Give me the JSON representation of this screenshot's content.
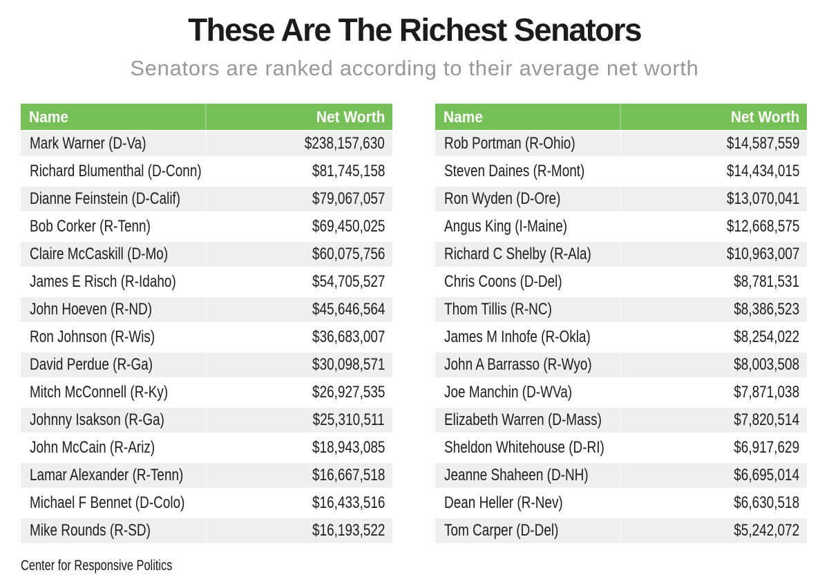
{
  "title": "These Are The Richest Senators",
  "subtitle": "Senators are ranked according to their average net worth",
  "columns": {
    "name": "Name",
    "worth": "Net Worth"
  },
  "source": "Center for Responsive Politics",
  "colors": {
    "header_green": "#75C157",
    "row_gray": "#EFEFEF",
    "subtitle_gray": "#989898",
    "title_black": "#1C1C1C"
  },
  "chart_data": {
    "type": "table",
    "title": "These Are The Richest Senators",
    "subtitle": "Senators are ranked according to their average net worth",
    "columns": [
      "Name",
      "Net Worth"
    ],
    "source": "Center for Responsive Politics",
    "left_table": [
      {
        "name": "Mark Warner (D-Va)",
        "net_worth": "$238,157,630"
      },
      {
        "name": "Richard Blumenthal (D-Conn)",
        "net_worth": "$81,745,158"
      },
      {
        "name": "Dianne Feinstein (D-Calif)",
        "net_worth": "$79,067,057"
      },
      {
        "name": "Bob Corker (R-Tenn)",
        "net_worth": "$69,450,025"
      },
      {
        "name": "Claire McCaskill (D-Mo)",
        "net_worth": "$60,075,756"
      },
      {
        "name": "James E Risch (R-Idaho)",
        "net_worth": "$54,705,527"
      },
      {
        "name": "John Hoeven (R-ND)",
        "net_worth": "$45,646,564"
      },
      {
        "name": "Ron Johnson (R-Wis)",
        "net_worth": "$36,683,007"
      },
      {
        "name": "David Perdue (R-Ga)",
        "net_worth": "$30,098,571"
      },
      {
        "name": "Mitch McConnell (R-Ky)",
        "net_worth": "$26,927,535"
      },
      {
        "name": "Johnny Isakson (R-Ga)",
        "net_worth": "$25,310,511"
      },
      {
        "name": "John McCain (R-Ariz)",
        "net_worth": "$18,943,085"
      },
      {
        "name": "Lamar Alexander (R-Tenn)",
        "net_worth": "$16,667,518"
      },
      {
        "name": "Michael F Bennet (D-Colo)",
        "net_worth": "$16,433,516"
      },
      {
        "name": "Mike Rounds (R-SD)",
        "net_worth": "$16,193,522"
      }
    ],
    "right_table": [
      {
        "name": "Rob Portman (R-Ohio)",
        "net_worth": "$14,587,559"
      },
      {
        "name": "Steven Daines (R-Mont)",
        "net_worth": "$14,434,015"
      },
      {
        "name": "Ron Wyden (D-Ore)",
        "net_worth": "$13,070,041"
      },
      {
        "name": "Angus King (I-Maine)",
        "net_worth": "$12,668,575"
      },
      {
        "name": "Richard C Shelby (R-Ala)",
        "net_worth": "$10,963,007"
      },
      {
        "name": "Chris Coons (D-Del)",
        "net_worth": "$8,781,531"
      },
      {
        "name": "Thom Tillis (R-NC)",
        "net_worth": "$8,386,523"
      },
      {
        "name": "James M Inhofe (R-Okla)",
        "net_worth": "$8,254,022"
      },
      {
        "name": "John A Barrasso (R-Wyo)",
        "net_worth": "$8,003,508"
      },
      {
        "name": "Joe Manchin (D-WVa)",
        "net_worth": "$7,871,038"
      },
      {
        "name": "Elizabeth Warren (D-Mass)",
        "net_worth": "$7,820,514"
      },
      {
        "name": "Sheldon Whitehouse (D-RI)",
        "net_worth": "$6,917,629"
      },
      {
        "name": "Jeanne Shaheen (D-NH)",
        "net_worth": "$6,695,014"
      },
      {
        "name": "Dean Heller (R-Nev)",
        "net_worth": "$6,630,518"
      },
      {
        "name": "Tom Carper (D-Del)",
        "net_worth": "$5,242,072"
      }
    ]
  }
}
